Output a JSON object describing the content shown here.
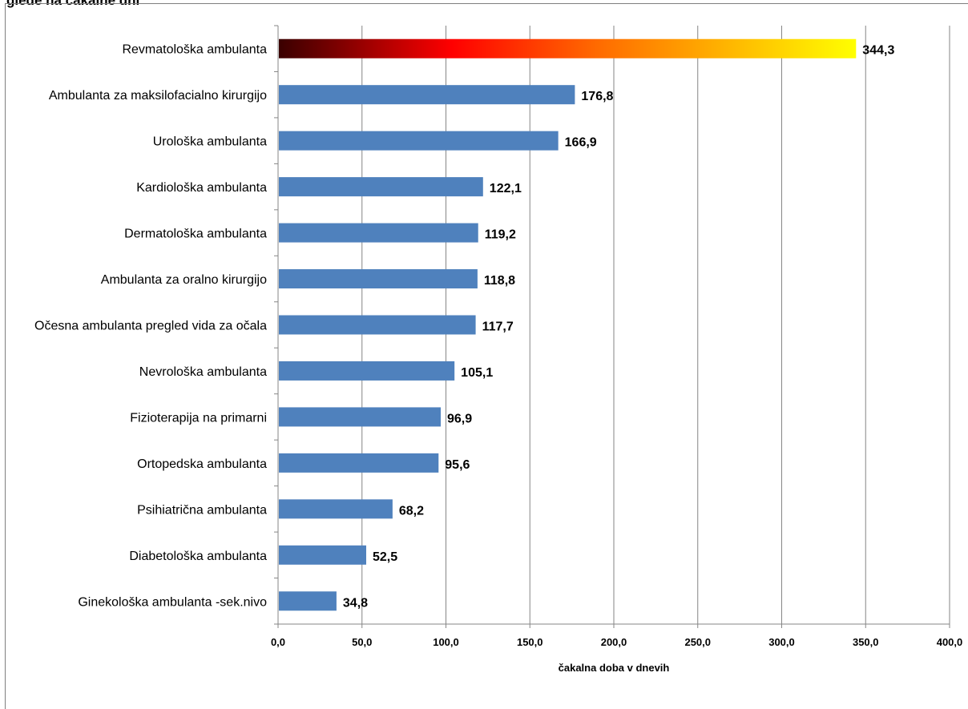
{
  "page": {
    "title": "glede na čakalne dni"
  },
  "chart_data": {
    "type": "bar",
    "orientation": "horizontal",
    "categories": [
      "Revmatološka ambulanta",
      "Ambulanta za maksilofacialno kirurgijo",
      "Urološka ambulanta",
      "Kardiološka ambulanta",
      "Dermatološka ambulanta",
      "Ambulanta za oralno kirurgijo",
      "Očesna ambulanta  pregled vida za očala",
      "Nevrološka ambulanta",
      "Fizioterapija na primarni",
      "Ortopedska ambulanta",
      "Psihiatrična ambulanta",
      "Diabetološka ambulanta",
      "Ginekološka ambulanta -sek.nivo"
    ],
    "values": [
      344.3,
      176.8,
      166.9,
      122.1,
      119.2,
      118.8,
      117.7,
      105.1,
      96.9,
      95.6,
      68.2,
      52.5,
      34.8
    ],
    "value_labels": [
      "344,3",
      "176,8",
      "166,9",
      "122,1",
      "119,2",
      "118,8",
      "117,7",
      "105,1",
      "96,9",
      "95,6",
      "68,2",
      "52,5",
      "34,8"
    ],
    "xlabel": "čakalna doba v dnevih",
    "ylabel": "",
    "xlim": [
      0,
      400
    ],
    "xticks": [
      0,
      50,
      100,
      150,
      200,
      250,
      300,
      350,
      400
    ],
    "xtick_labels": [
      "0,0",
      "50,0",
      "100,0",
      "150,0",
      "200,0",
      "250,0",
      "300,0",
      "350,0",
      "400,0"
    ],
    "grid": "vertical",
    "legend": "none",
    "colors": {
      "bar": "#4f81bd",
      "highlight_gradient": [
        "#3a0000",
        "#ff0000",
        "#ff6a00",
        "#ffff00"
      ],
      "grid": "#868686"
    }
  }
}
